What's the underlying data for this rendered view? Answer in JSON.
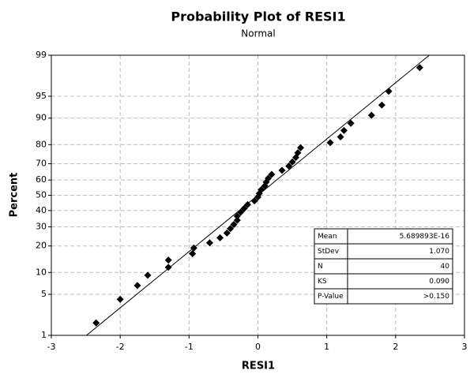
{
  "chart_data": {
    "type": "scatter",
    "title": "Probability Plot of RESI1",
    "subtitle": "Normal",
    "x_label": "RESI1",
    "y_label": "Percent",
    "y_scale": "normal-probability",
    "grid": true,
    "color": "#000000",
    "xlim": [
      -3,
      3
    ],
    "xticks": [
      -3,
      -2,
      -1,
      0,
      1,
      2,
      3
    ],
    "ylim": [
      1,
      99
    ],
    "yticks": [
      1,
      5,
      10,
      20,
      30,
      40,
      50,
      60,
      70,
      80,
      90,
      95,
      99
    ],
    "x": [
      -2.35,
      -2.0,
      -1.75,
      -1.6,
      -1.3,
      -1.3,
      -0.95,
      -0.93,
      -0.7,
      -0.55,
      -0.45,
      -0.4,
      -0.35,
      -0.3,
      -0.3,
      -0.25,
      -0.2,
      -0.15,
      -0.05,
      0.0,
      0.02,
      0.05,
      0.1,
      0.12,
      0.15,
      0.2,
      0.35,
      0.45,
      0.5,
      0.55,
      0.58,
      0.62,
      1.05,
      1.2,
      1.25,
      1.35,
      1.65,
      1.8,
      1.9,
      2.35
    ],
    "values": [
      1.7,
      4.2,
      6.7,
      9.2,
      11.6,
      14.1,
      16.6,
      19.1,
      21.5,
      24.0,
      26.5,
      29.0,
      31.4,
      33.9,
      36.4,
      38.9,
      41.3,
      43.8,
      46.3,
      48.8,
      51.2,
      53.7,
      56.2,
      58.7,
      61.1,
      63.6,
      66.1,
      68.6,
      71.0,
      73.5,
      76.0,
      78.5,
      80.9,
      83.4,
      85.9,
      88.4,
      90.8,
      93.3,
      95.8,
      98.3
    ],
    "stats": [
      [
        "Mean",
        "5.689893E-16"
      ],
      [
        "StDev",
        "1.070"
      ],
      [
        "N",
        "40"
      ],
      [
        "KS",
        "0.090"
      ],
      [
        "P-Value",
        ">0.150"
      ]
    ]
  }
}
